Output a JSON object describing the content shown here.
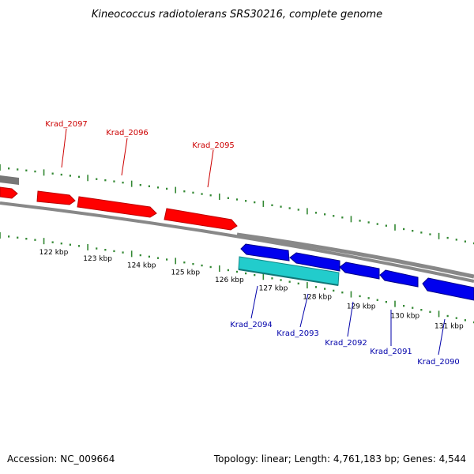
{
  "title": "Kineococcus radiotolerans SRS30216, complete genome",
  "accession": "Accession: NC_009664",
  "summary": "Topology: linear; Length: 4,761,183 bp; Genes: 4,544",
  "colors": {
    "forward_gene": "#ff0000",
    "reverse_gene": "#0000ee",
    "rna_gene": "#22cccc",
    "backbone": "#888888",
    "tick": "#338833",
    "forward_label": "#cc0000",
    "reverse_label": "#0000aa"
  },
  "scale_labels": [
    "122 kbp",
    "123 kbp",
    "124 kbp",
    "125 kbp",
    "126 kbp",
    "127 kbp",
    "128 kbp",
    "129 kbp",
    "130 kbp",
    "131 kbp"
  ],
  "forward_genes": [
    "Krad_2097",
    "Krad_2096",
    "Krad_2095"
  ],
  "reverse_genes": [
    "Krad_2094",
    "Krad_2093",
    "Krad_2092",
    "Krad_2091",
    "Krad_2090"
  ]
}
